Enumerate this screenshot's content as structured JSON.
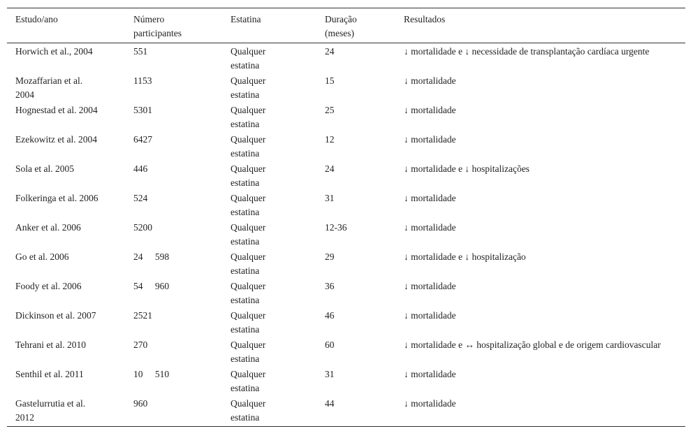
{
  "table": {
    "header": [
      "Estudo/ano",
      "Número participantes",
      "Estatina",
      "Duração (meses)",
      "Resultados"
    ],
    "rows": [
      [
        "Horwich et al., 2004",
        "551",
        "Qualquer estatina",
        "24",
        "↓ mortalidade e ↓ necessidade de transplantação cardíaca urgente"
      ],
      [
        "Mozaffarian et al. 2004",
        "1153",
        "Qualquer estatina",
        "15",
        "↓ mortalidade"
      ],
      [
        "Hognestad et al. 2004",
        "5301",
        "Qualquer estatina",
        "25",
        "↓ mortalidade"
      ],
      [
        "Ezekowitz et al. 2004",
        "6427",
        "Qualquer estatina",
        "12",
        "↓ mortalidade"
      ],
      [
        "Sola et al. 2005",
        "446",
        "Qualquer estatina",
        "24",
        "↓ mortalidade e ↓ hospitalizações"
      ],
      [
        "Folkeringa et al. 2006",
        "524",
        "Qualquer estatina",
        "31",
        "↓ mortalidade"
      ],
      [
        "Anker et al. 2006",
        "5200",
        "Qualquer estatina",
        "12-36",
        "↓ mortalidade"
      ],
      [
        "Go et al. 2006",
        "24 598",
        "Qualquer estatina",
        "29",
        "↓ mortalidade e ↓ hospitalização"
      ],
      [
        "Foody et al. 2006",
        "54 960",
        "Qualquer estatina",
        "36",
        "↓ mortalidade"
      ],
      [
        "Dickinson et al. 2007",
        "2521",
        "Qualquer estatina",
        "46",
        "↓ mortalidade"
      ],
      [
        "Tehrani et al. 2010",
        "270",
        "Qualquer estatina",
        "60",
        "↓ mortalidade e ↔ hospitalização global e de origem cardiovascular"
      ],
      [
        "Senthil et al. 2011",
        "10 510",
        "Qualquer estatina",
        "31",
        "↓ mortalidade"
      ],
      [
        "Gastelurrutia et al. 2012",
        "960",
        "Qualquer estatina",
        "44",
        "↓ mortalidade"
      ]
    ]
  }
}
